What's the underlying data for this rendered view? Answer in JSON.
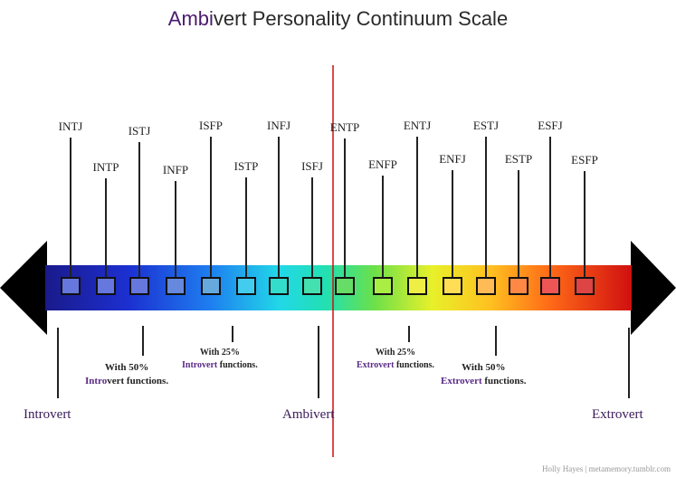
{
  "title": {
    "accent": "Ambi",
    "rest": "vert Personality Continuum Scale"
  },
  "types": [
    {
      "label": "INTJ",
      "color": "#6677dd"
    },
    {
      "label": "INTP",
      "color": "#6677dd"
    },
    {
      "label": "ISTJ",
      "color": "#6677dd"
    },
    {
      "label": "INFP",
      "color": "#6688dd"
    },
    {
      "label": "ISFP",
      "color": "#66aadd"
    },
    {
      "label": "ISTP",
      "color": "#44ccee"
    },
    {
      "label": "INFJ",
      "color": "#33ddcc"
    },
    {
      "label": "ISFJ",
      "color": "#44e0b0"
    },
    {
      "label": "ENTP",
      "color": "#66dd66"
    },
    {
      "label": "ENFP",
      "color": "#aaee44"
    },
    {
      "label": "ENTJ",
      "color": "#eeee44"
    },
    {
      "label": "ENFJ",
      "color": "#ffdd55"
    },
    {
      "label": "ESTJ",
      "color": "#ffbb55"
    },
    {
      "label": "ESTP",
      "color": "#ff8844"
    },
    {
      "label": "ESFJ",
      "color": "#ee5555"
    },
    {
      "label": "ESFP",
      "color": "#dd4444"
    }
  ],
  "notes": {
    "introvert_50": {
      "line1": "With 50%",
      "hl": "Intro",
      "rest": "vert functions."
    },
    "introvert_25": {
      "line1": "With 25%",
      "hl": "Introvert",
      "rest": " functions."
    },
    "extrovert_25": {
      "line1": "With 25%",
      "hl": "Extrovert",
      "rest": " functions."
    },
    "extrovert_50": {
      "line1": "With 50%",
      "hl": "Extrovert",
      "rest": " functions."
    }
  },
  "ends": {
    "left": "Introvert",
    "center": "Ambivert",
    "right": "Extrovert"
  },
  "credit": "Holly Hayes | metamemory.tumblr.com"
}
